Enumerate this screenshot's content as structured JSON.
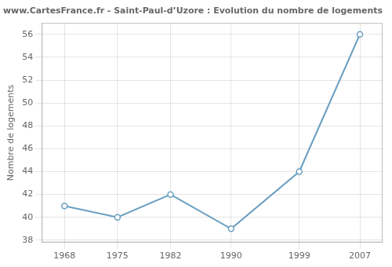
{
  "chart_data": {
    "type": "line",
    "title": "www.CartesFrance.fr - Saint-Paul-d’Uzore : Evolution du nombre de logements",
    "y_label": "Nombre de logements",
    "x": [
      1968,
      1975,
      1982,
      1990,
      1999,
      2007
    ],
    "values": [
      41,
      40,
      42,
      39,
      44,
      56
    ],
    "color": "#6a9fc0",
    "marker": "circle",
    "xlim": [
      1965,
      2010
    ],
    "xticks": [
      1968,
      1975,
      1982,
      1990,
      1999,
      2007
    ],
    "ylim": [
      37.8,
      57.0
    ],
    "yticks": [
      38,
      40,
      42,
      44,
      46,
      48,
      50,
      52,
      54,
      56
    ],
    "grid": true
  }
}
